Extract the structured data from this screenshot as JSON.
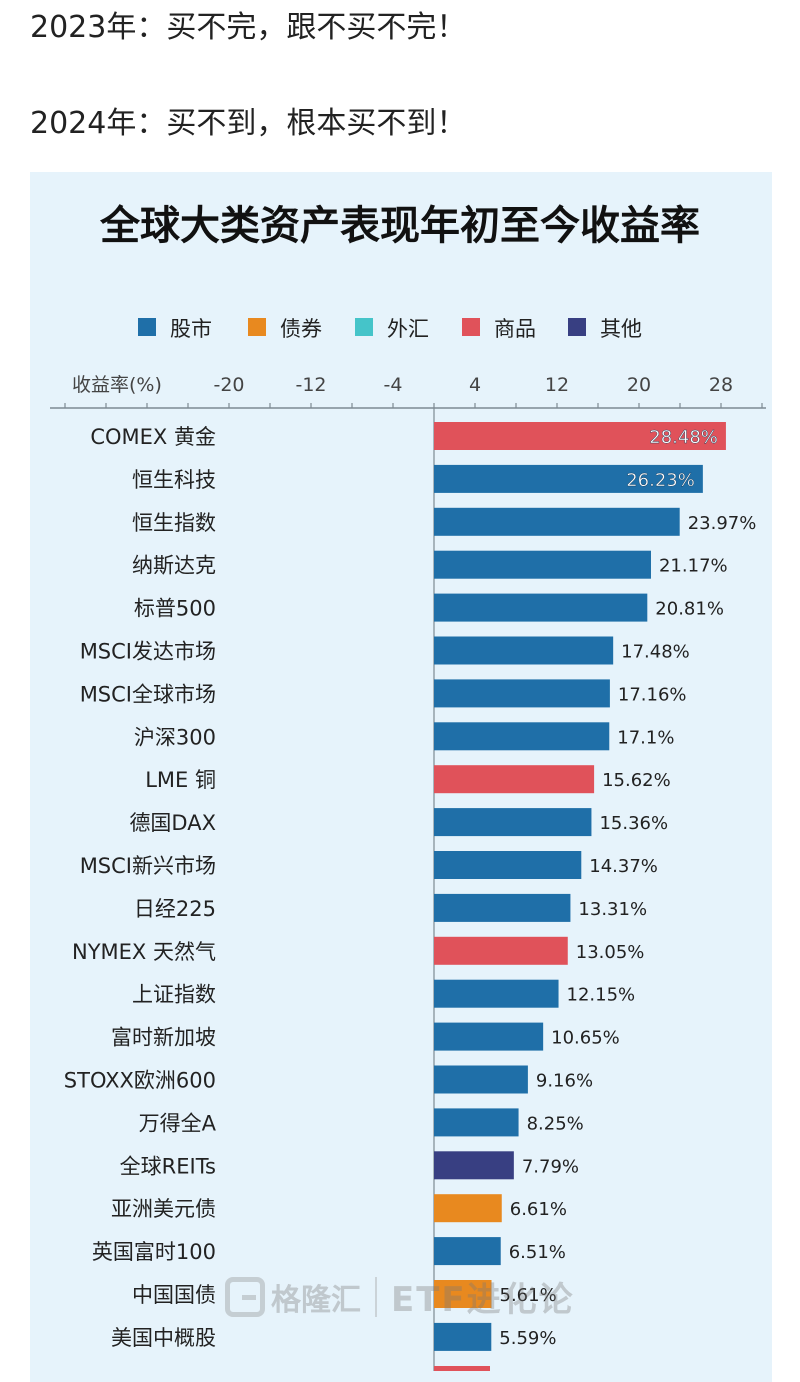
{
  "post": {
    "line1": "2023年：买不完，跟不买不完！",
    "line2": "2024年：买不到，根本买不到！"
  },
  "watermark": {
    "brand": "格隆汇",
    "channel": "ETF进化论"
  },
  "chart_data": {
    "type": "bar",
    "orientation": "horizontal",
    "title": "全球大类资产表现年初至今收益率",
    "axis_label": "收益率(%)",
    "xlim": [
      -24,
      32
    ],
    "ticks": [
      -20,
      -12,
      -4,
      4,
      12,
      20,
      28
    ],
    "legend_position": "top",
    "legend": [
      {
        "key": "stock",
        "name": "股市",
        "color": "#1f6fa8"
      },
      {
        "key": "bond",
        "name": "债券",
        "color": "#e8891f"
      },
      {
        "key": "fx",
        "name": "外汇",
        "color": "#45c4c9"
      },
      {
        "key": "commodity",
        "name": "商品",
        "color": "#e0525a"
      },
      {
        "key": "other",
        "name": "其他",
        "color": "#383f82"
      }
    ],
    "bars": [
      {
        "label": "COMEX 黄金",
        "value": 28.48,
        "value_label": "28.48%",
        "category": "commodity"
      },
      {
        "label": "恒生科技",
        "value": 26.23,
        "value_label": "26.23%",
        "category": "stock"
      },
      {
        "label": "恒生指数",
        "value": 23.97,
        "value_label": "23.97%",
        "category": "stock"
      },
      {
        "label": "纳斯达克",
        "value": 21.17,
        "value_label": "21.17%",
        "category": "stock"
      },
      {
        "label": "标普500",
        "value": 20.81,
        "value_label": "20.81%",
        "category": "stock"
      },
      {
        "label": "MSCI发达市场",
        "value": 17.48,
        "value_label": "17.48%",
        "category": "stock"
      },
      {
        "label": "MSCI全球市场",
        "value": 17.16,
        "value_label": "17.16%",
        "category": "stock"
      },
      {
        "label": "沪深300",
        "value": 17.1,
        "value_label": "17.1%",
        "category": "stock"
      },
      {
        "label": "LME 铜",
        "value": 15.62,
        "value_label": "15.62%",
        "category": "commodity"
      },
      {
        "label": "德国DAX",
        "value": 15.36,
        "value_label": "15.36%",
        "category": "stock"
      },
      {
        "label": "MSCI新兴市场",
        "value": 14.37,
        "value_label": "14.37%",
        "category": "stock"
      },
      {
        "label": "日经225",
        "value": 13.31,
        "value_label": "13.31%",
        "category": "stock"
      },
      {
        "label": "NYMEX 天然气",
        "value": 13.05,
        "value_label": "13.05%",
        "category": "commodity"
      },
      {
        "label": "上证指数",
        "value": 12.15,
        "value_label": "12.15%",
        "category": "stock"
      },
      {
        "label": "富时新加坡",
        "value": 10.65,
        "value_label": "10.65%",
        "category": "stock"
      },
      {
        "label": "STOXX欧洲600",
        "value": 9.16,
        "value_label": "9.16%",
        "category": "stock"
      },
      {
        "label": "万得全A",
        "value": 8.25,
        "value_label": "8.25%",
        "category": "stock"
      },
      {
        "label": "全球REITs",
        "value": 7.79,
        "value_label": "7.79%",
        "category": "other"
      },
      {
        "label": "亚洲美元债",
        "value": 6.61,
        "value_label": "6.61%",
        "category": "bond"
      },
      {
        "label": "英国富时100",
        "value": 6.51,
        "value_label": "6.51%",
        "category": "stock"
      },
      {
        "label": "中国国债",
        "value": 5.61,
        "value_label": "5.61%",
        "category": "bond"
      },
      {
        "label": "美国中概股",
        "value": 5.59,
        "value_label": "5.59%",
        "category": "stock"
      }
    ]
  }
}
